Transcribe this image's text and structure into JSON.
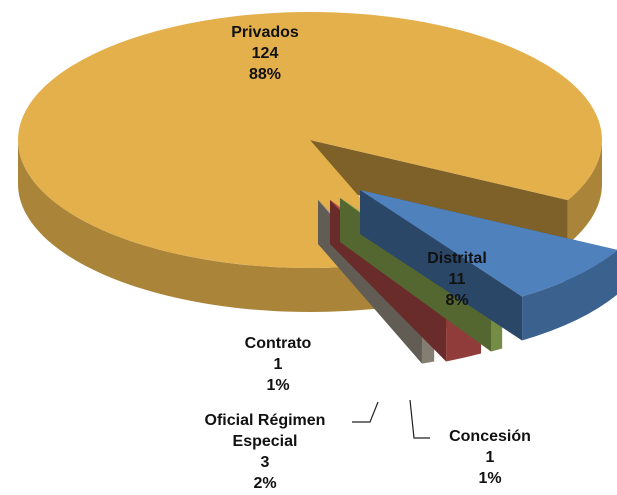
{
  "chart_data": {
    "type": "pie3d",
    "categories": [
      "Distrital",
      "Concesión",
      "Oficial Régimen Especial",
      "Contrato",
      "Privados"
    ],
    "values": [
      11,
      1,
      3,
      1,
      124
    ],
    "percent_labels": [
      "8%",
      "1%",
      "2%",
      "1%",
      "88%"
    ],
    "colors": [
      "#4F81BD",
      "#9BBB59",
      "#C0504D",
      "#B0A898",
      "#E3B04B"
    ]
  }
}
